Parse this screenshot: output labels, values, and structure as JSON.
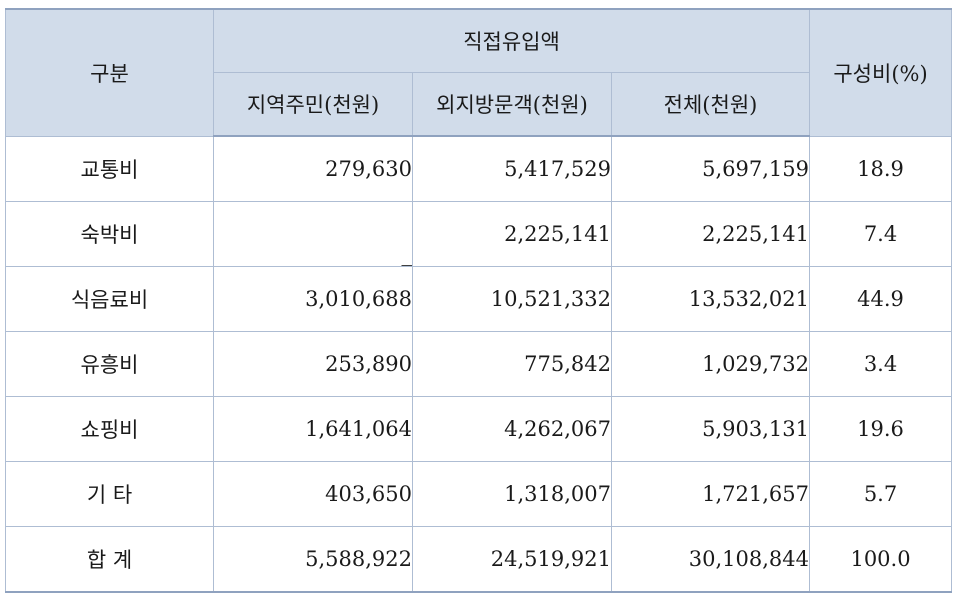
{
  "table": {
    "headers": {
      "category": "구분",
      "direct_inflow": "직접유입액",
      "local_residents": "지역주민(천원)",
      "outside_visitors": "외지방문객(천원)",
      "total": "전체(천원)",
      "ratio": "구성비(%)"
    },
    "rows": [
      {
        "category": "교통비",
        "local": "279,630",
        "visitors": "5,417,529",
        "total": "5,697,159",
        "ratio": "18.9"
      },
      {
        "category": "숙박비",
        "local": "_",
        "visitors": "2,225,141",
        "total": "2,225,141",
        "ratio": "7.4"
      },
      {
        "category": "식음료비",
        "local": "3,010,688",
        "visitors": "10,521,332",
        "total": "13,532,021",
        "ratio": "44.9"
      },
      {
        "category": "유흥비",
        "local": "253,890",
        "visitors": "775,842",
        "total": "1,029,732",
        "ratio": "3.4"
      },
      {
        "category": "쇼핑비",
        "local": "1,641,064",
        "visitors": "4,262,067",
        "total": "5,903,131",
        "ratio": "19.6"
      },
      {
        "category": "기  타",
        "local": "403,650",
        "visitors": "1,318,007",
        "total": "1,721,657",
        "ratio": "5.7"
      },
      {
        "category": "합  계",
        "local": "5,588,922",
        "visitors": "24,519,921",
        "total": "30,108,844",
        "ratio": "100.0"
      }
    ]
  }
}
